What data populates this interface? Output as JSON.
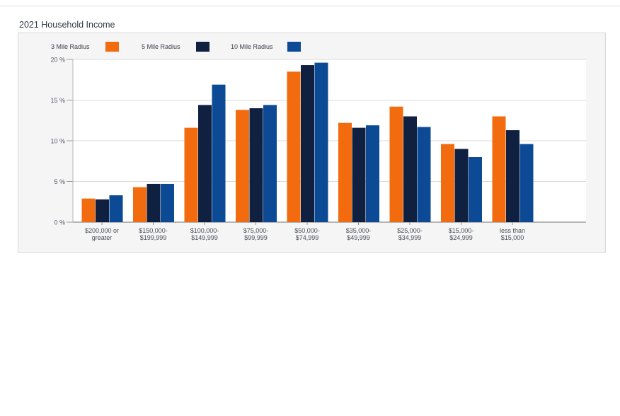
{
  "chart_data": {
    "type": "bar",
    "title": "2021 Household Income",
    "xlabel": "",
    "ylabel": "",
    "ylim": [
      0,
      20
    ],
    "y_ticks": [
      {
        "value": 0,
        "label": "0 %"
      },
      {
        "value": 5,
        "label": "5 %"
      },
      {
        "value": 10,
        "label": "10 %"
      },
      {
        "value": 15,
        "label": "15 %"
      },
      {
        "value": 20,
        "label": "20 %"
      }
    ],
    "categories": [
      [
        "$200,000 or",
        "greater"
      ],
      [
        "$150,000-",
        "$199,999"
      ],
      [
        "$100,000-",
        "$149,999"
      ],
      [
        "$75,000-",
        "$99,999"
      ],
      [
        "$50,000-",
        "$74,999"
      ],
      [
        "$35,000-",
        "$49,999"
      ],
      [
        "$25,000-",
        "$34,999"
      ],
      [
        "$15,000-",
        "$24,999"
      ],
      [
        "less than",
        "$15,000"
      ]
    ],
    "series": [
      {
        "name": "3 Mile Radius",
        "color": "#f26b0f",
        "values": [
          2.9,
          4.3,
          11.6,
          13.8,
          18.5,
          12.2,
          14.2,
          9.6,
          13.0
        ]
      },
      {
        "name": "5 Mile Radius",
        "color": "#0f2040",
        "values": [
          2.8,
          4.7,
          14.4,
          14.0,
          19.3,
          11.6,
          13.0,
          9.0,
          11.3
        ]
      },
      {
        "name": "10 Mile Radius",
        "color": "#0d4a96",
        "values": [
          3.3,
          4.7,
          16.9,
          14.4,
          19.6,
          11.9,
          11.7,
          8.0,
          9.6
        ]
      }
    ],
    "legend_position": "top-left",
    "grid": true
  }
}
